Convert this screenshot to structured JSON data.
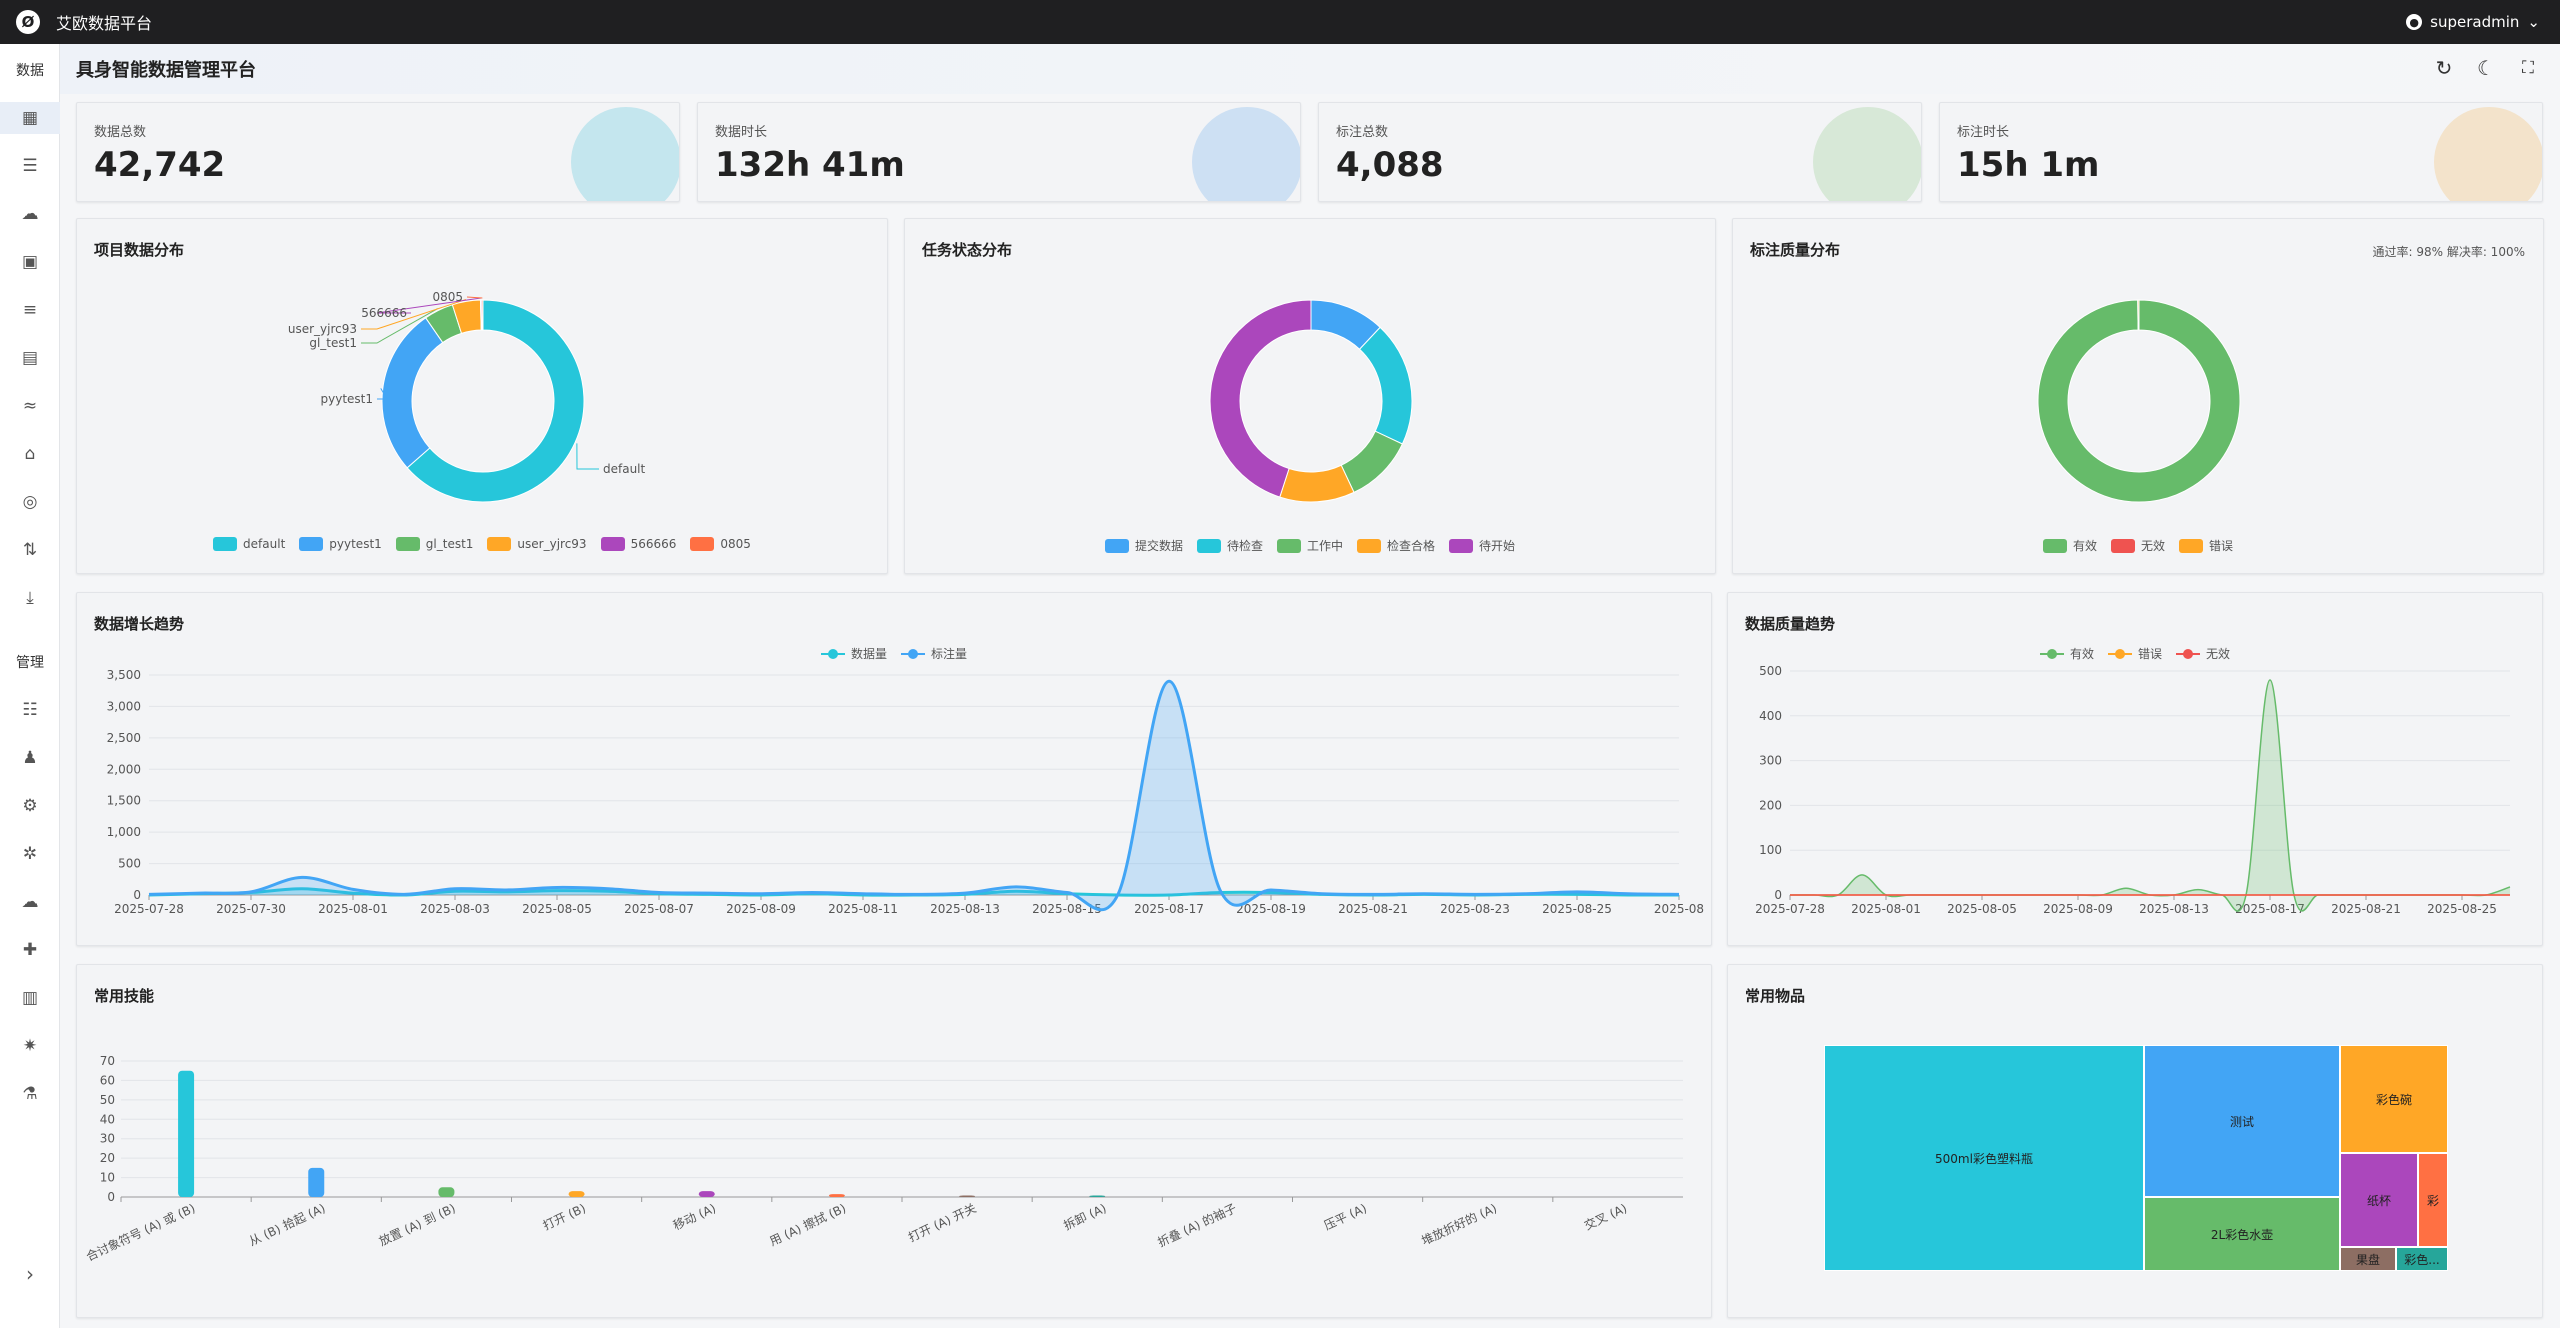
{
  "app": {
    "title": "艾欧数据平台",
    "logo": "Ø",
    "user": "superadmin"
  },
  "sidebar": {
    "section_data": "数据",
    "section_manage": "管理",
    "items_data": [
      {
        "icon": "dashboard-icon",
        "glyph": "▦",
        "active": true
      },
      {
        "icon": "storage-icon",
        "glyph": "☰"
      },
      {
        "icon": "cloud-upload-icon",
        "glyph": "☁"
      },
      {
        "icon": "video-icon",
        "glyph": "▣"
      },
      {
        "icon": "list-icon",
        "glyph": "≡"
      },
      {
        "icon": "book-icon",
        "glyph": "▤"
      },
      {
        "icon": "waves-icon",
        "glyph": "≈"
      },
      {
        "icon": "tag-icon",
        "glyph": "⌂"
      },
      {
        "icon": "gamepad-icon",
        "glyph": "◎"
      },
      {
        "icon": "swap-icon",
        "glyph": "⇅"
      },
      {
        "icon": "download-icon",
        "glyph": "⤓"
      }
    ],
    "items_manage": [
      {
        "icon": "document-list-icon",
        "glyph": "☷"
      },
      {
        "icon": "users-icon",
        "glyph": "♟"
      },
      {
        "icon": "robot-arm-icon",
        "glyph": "⚙"
      },
      {
        "icon": "network-icon",
        "glyph": "✲"
      },
      {
        "icon": "cloud-icon",
        "glyph": "☁"
      },
      {
        "icon": "puzzle-icon",
        "glyph": "✚"
      },
      {
        "icon": "trash-icon",
        "glyph": "▥"
      },
      {
        "icon": "settings-icon",
        "glyph": "✷"
      },
      {
        "icon": "flask-icon",
        "glyph": "⚗"
      }
    ],
    "collapse_glyph": "›"
  },
  "header": {
    "title": "具身智能数据管理平台",
    "refresh": "↻",
    "theme": "☾",
    "fullscreen": "⛶"
  },
  "stats": [
    {
      "label": "数据总数",
      "value": "42,742",
      "color": "#c4e6ee"
    },
    {
      "label": "数据时长",
      "value": "132h 41m",
      "color": "#cde0f3"
    },
    {
      "label": "标注总数",
      "value": "4,088",
      "color": "#d7e8d7"
    },
    {
      "label": "标注时长",
      "value": "15h 1m",
      "color": "#f3e3cb"
    }
  ],
  "project_dist": {
    "title": "项目数据分布",
    "chart_data": {
      "type": "pie",
      "labels": [
        "default",
        "pyytest1",
        "gl_test1",
        "user_yjrc93",
        "566666",
        "0805"
      ],
      "values": [
        63.5,
        26.9,
        4.7,
        4.5,
        0.2,
        0.2
      ],
      "colors": [
        "#26c6da",
        "#42a5f5",
        "#66bb6a",
        "#ffa726",
        "#ab47bc",
        "#ff7043"
      ]
    }
  },
  "task_status": {
    "title": "任务状态分布",
    "chart_data": {
      "type": "pie",
      "labels": [
        "提交数据",
        "待检查",
        "工作中",
        "检查合格",
        "待开始"
      ],
      "values": [
        12,
        20,
        11,
        12,
        45
      ],
      "colors": [
        "#42a5f5",
        "#26c6da",
        "#66bb6a",
        "#ffa726",
        "#ab47bc"
      ]
    }
  },
  "quality_dist": {
    "title": "标注质量分布",
    "note": "通过率: 98% 解决率: 100%",
    "chart_data": {
      "type": "pie",
      "labels": [
        "有效",
        "无效",
        "错误"
      ],
      "values": [
        99.8,
        0,
        0.2
      ],
      "colors": [
        "#66bb6a",
        "#ef5350",
        "#ffa726"
      ]
    }
  },
  "growth": {
    "title": "数据增长趋势",
    "chart_data": {
      "type": "area",
      "x": [
        "2025-07-28",
        "2025-07-29",
        "2025-07-30",
        "2025-07-31",
        "2025-08-01",
        "2025-08-02",
        "2025-08-03",
        "2025-08-04",
        "2025-08-05",
        "2025-08-06",
        "2025-08-07",
        "2025-08-08",
        "2025-08-09",
        "2025-08-10",
        "2025-08-11",
        "2025-08-12",
        "2025-08-13",
        "2025-08-14",
        "2025-08-15",
        "2025-08-16",
        "2025-08-17",
        "2025-08-18",
        "2025-08-19",
        "2025-08-20",
        "2025-08-21",
        "2025-08-22",
        "2025-08-23",
        "2025-08-24",
        "2025-08-25",
        "2025-08-26",
        "2025-08-27"
      ],
      "xticks": [
        "2025-07-28",
        "2025-07-30",
        "2025-08-01",
        "2025-08-03",
        "2025-08-05",
        "2025-08-07",
        "2025-08-09",
        "2025-08-11",
        "2025-08-13",
        "2025-08-15",
        "2025-08-17",
        "2025-08-19",
        "2025-08-21",
        "2025-08-23",
        "2025-08-25",
        "2025-08"
      ],
      "ylim": [
        0,
        3500
      ],
      "yticks": [
        0,
        500,
        1000,
        1500,
        2000,
        2500,
        3000,
        3500
      ],
      "series": [
        {
          "name": "数据量",
          "color": "#26c6da",
          "values": [
            0,
            20,
            40,
            100,
            30,
            0,
            60,
            50,
            70,
            60,
            20,
            10,
            0,
            20,
            0,
            0,
            10,
            60,
            20,
            0,
            0,
            40,
            40,
            10,
            0,
            10,
            0,
            10,
            10,
            0,
            0
          ]
        },
        {
          "name": "标注量",
          "color": "#42a5f5",
          "values": [
            10,
            30,
            50,
            280,
            90,
            10,
            100,
            80,
            120,
            100,
            40,
            30,
            20,
            40,
            20,
            10,
            30,
            130,
            40,
            10,
            3400,
            80,
            80,
            20,
            10,
            20,
            10,
            20,
            50,
            20,
            10
          ]
        }
      ]
    }
  },
  "quality_trend": {
    "title": "数据质量趋势",
    "chart_data": {
      "type": "line",
      "x": [
        "2025-07-28",
        "2025-07-29",
        "2025-07-30",
        "2025-07-31",
        "2025-08-01",
        "2025-08-02",
        "2025-08-03",
        "2025-08-04",
        "2025-08-05",
        "2025-08-06",
        "2025-08-07",
        "2025-08-08",
        "2025-08-09",
        "2025-08-10",
        "2025-08-11",
        "2025-08-12",
        "2025-08-13",
        "2025-08-14",
        "2025-08-15",
        "2025-08-16",
        "2025-08-17",
        "2025-08-18",
        "2025-08-19",
        "2025-08-20",
        "2025-08-21",
        "2025-08-22",
        "2025-08-23",
        "2025-08-24",
        "2025-08-25",
        "2025-08-26",
        "2025-08-27"
      ],
      "xticks": [
        "2025-07-28",
        "2025-08-01",
        "2025-08-05",
        "2025-08-09",
        "2025-08-13",
        "2025-08-17",
        "2025-08-21",
        "2025-08-25"
      ],
      "ylim": [
        0,
        500
      ],
      "yticks": [
        0,
        100,
        200,
        300,
        400,
        500
      ],
      "series": [
        {
          "name": "有效",
          "color": "#66bb6a",
          "values": [
            0,
            0,
            0,
            45,
            0,
            0,
            0,
            0,
            0,
            0,
            0,
            0,
            0,
            0,
            15,
            0,
            0,
            12,
            0,
            0,
            480,
            0,
            0,
            0,
            0,
            0,
            0,
            0,
            0,
            0,
            18
          ]
        },
        {
          "name": "错误",
          "color": "#ffa726",
          "values": [
            0,
            0,
            0,
            0,
            0,
            0,
            0,
            0,
            0,
            0,
            0,
            0,
            0,
            0,
            0,
            0,
            0,
            0,
            0,
            0,
            0,
            0,
            0,
            0,
            0,
            0,
            0,
            0,
            0,
            0,
            0
          ]
        },
        {
          "name": "无效",
          "color": "#ef5350",
          "values": [
            0,
            0,
            0,
            0,
            0,
            0,
            0,
            0,
            0,
            0,
            0,
            0,
            0,
            0,
            0,
            0,
            0,
            0,
            0,
            0,
            0,
            0,
            0,
            0,
            0,
            0,
            0,
            0,
            0,
            0,
            0
          ]
        }
      ]
    }
  },
  "skills": {
    "title": "常用技能",
    "chart_data": {
      "type": "bar",
      "ylim": [
        0,
        70
      ],
      "yticks": [
        0,
        10,
        20,
        30,
        40,
        50,
        60,
        70
      ],
      "categories": [
        "合讨象符号 (A) 或 (B)",
        "从 (B) 拾起 (A)",
        "放置 (A) 到 (B)",
        "打开 (B)",
        "移动 (A)",
        "用 (A) 擦拭 (B)",
        "打开 (A) 开关",
        "拆卸 (A)",
        "折叠 (A) 的袖子",
        "压平 (A)",
        "堆放折好的 (A)",
        "交叉 (A)"
      ],
      "values": [
        65,
        15,
        5,
        3,
        3,
        1.5,
        0.5,
        0.5,
        0,
        0,
        0,
        0
      ],
      "colors": [
        "#26c6da",
        "#42a5f5",
        "#66bb6a",
        "#ffa726",
        "#ab47bc",
        "#ff7043",
        "#8d6e63",
        "#26a69a",
        "#42a5f5",
        "#66bb6a",
        "#ffa726",
        "#ab47bc"
      ]
    }
  },
  "items": {
    "title": "常用物品",
    "chart_data": {
      "type": "treemap",
      "labels": [
        "500ml彩色塑料瓶",
        "测试",
        "2L彩色水壶",
        "彩色碗",
        "纸杯",
        "彩",
        "果盘",
        "彩色..."
      ],
      "values": [
        48,
        17,
        12,
        9,
        4.5,
        2,
        1.5,
        1.5
      ],
      "colors": [
        "#26c6da",
        "#42a5f5",
        "#66bb6a",
        "#ffa726",
        "#ab47bc",
        "#ff7043",
        "#8d6e63",
        "#26a69a"
      ]
    }
  }
}
